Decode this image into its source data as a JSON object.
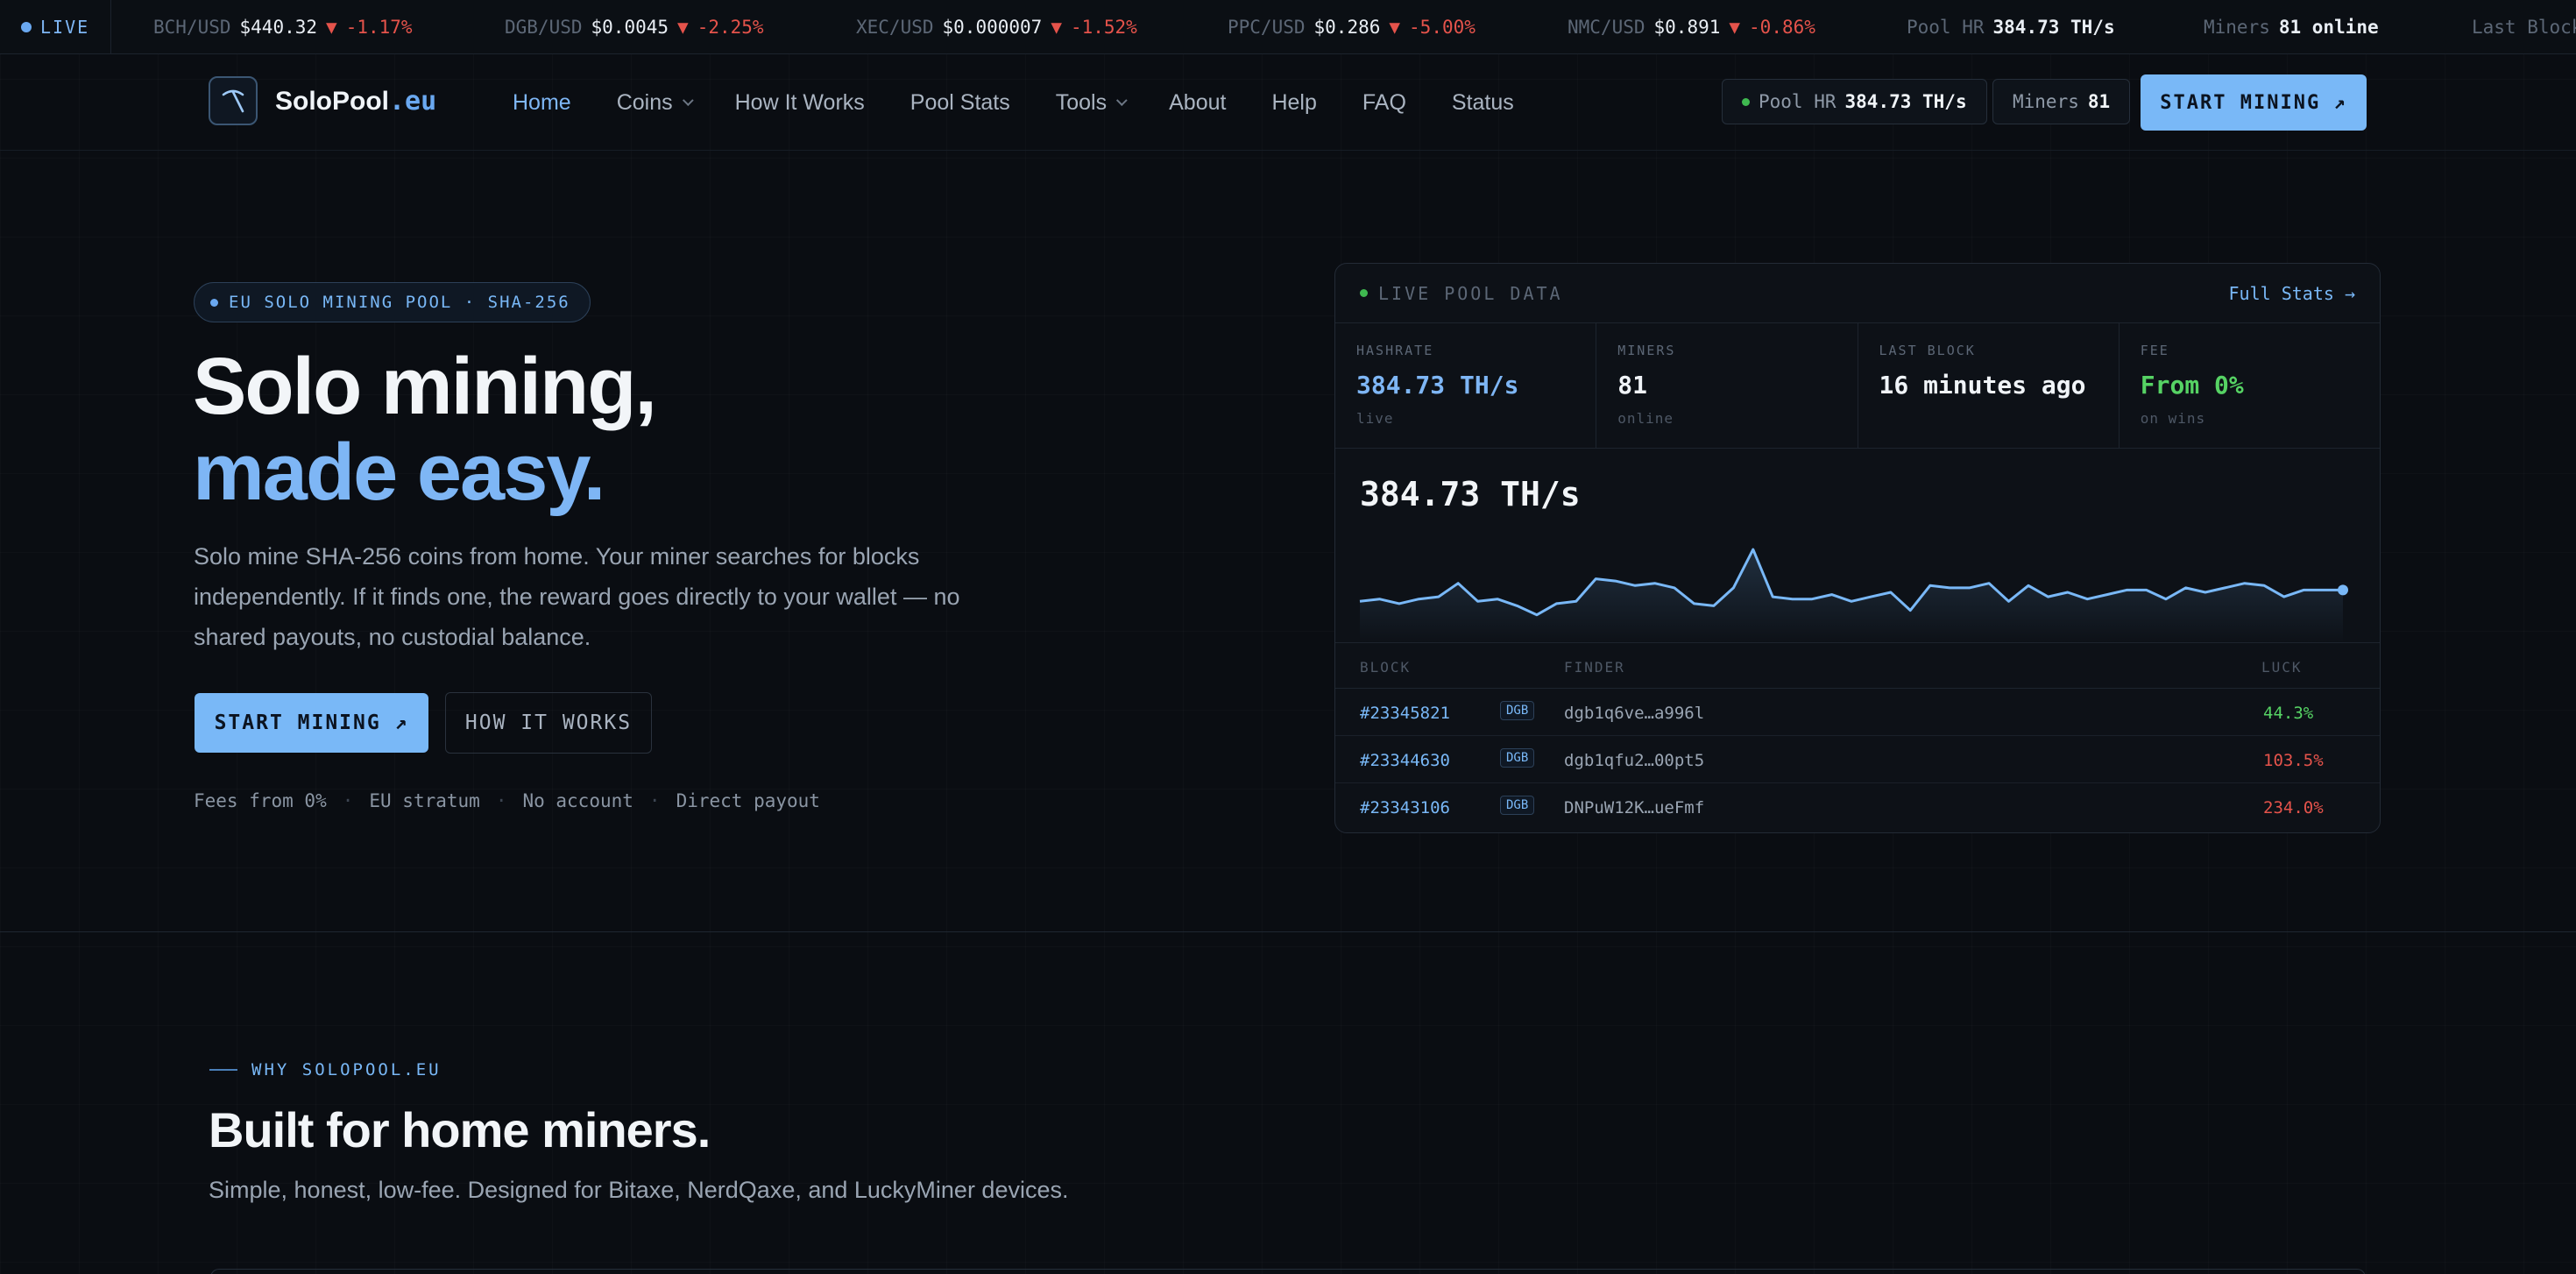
{
  "ticker": {
    "live_label": "LIVE",
    "items": [
      {
        "pair": "BCH/USD",
        "price": "$440.32",
        "change": "-1.17%"
      },
      {
        "pair": "DGB/USD",
        "price": "$0.0045",
        "change": "-2.25%"
      },
      {
        "pair": "XEC/USD",
        "price": "$0.000007",
        "change": "-1.52%"
      },
      {
        "pair": "PPC/USD",
        "price": "$0.286",
        "change": "-5.00%"
      },
      {
        "pair": "NMC/USD",
        "price": "$0.891",
        "change": "-0.86%"
      }
    ],
    "down_arrow": "▼",
    "pool_hr_label": "Pool HR",
    "pool_hr_value": "384.73 TH/s",
    "miners_label": "Miners",
    "miners_value": "81 online",
    "last_block_label": "Last Block"
  },
  "nav": {
    "logo_name": "SoloPool",
    "logo_tld": ".eu",
    "links": [
      {
        "label": "Home",
        "active": true
      },
      {
        "label": "Coins",
        "dropdown": true
      },
      {
        "label": "How It Works"
      },
      {
        "label": "Pool Stats"
      },
      {
        "label": "Tools",
        "dropdown": true
      },
      {
        "label": "About"
      },
      {
        "label": "Help"
      },
      {
        "label": "FAQ"
      },
      {
        "label": "Status"
      }
    ],
    "pool_hr_label": "Pool HR",
    "pool_hr_value": "384.73 TH/s",
    "miners_label": "Miners",
    "miners_value": "81",
    "cta_label": "START MINING ↗"
  },
  "hero": {
    "badge": "EU SOLO MINING POOL · SHA-256",
    "title_line1": "Solo mining,",
    "title_line2": "made easy.",
    "description": "Solo mine SHA-256 coins from home. Your miner searches for blocks independently. If it finds one, the reward goes directly to your wallet — no shared payouts, no custodial balance.",
    "primary_cta": "START MINING ↗",
    "secondary_cta": "HOW IT WORKS",
    "meta": [
      "Fees from 0%",
      "EU stratum",
      "No account",
      "Direct payout"
    ],
    "meta_separator": "·"
  },
  "panel": {
    "title": "LIVE POOL DATA",
    "link": "Full Stats →",
    "stats": [
      {
        "label": "HASHRATE",
        "value": "384.73 TH/s",
        "sub": "live",
        "style": "blue"
      },
      {
        "label": "MINERS",
        "value": "81",
        "sub": "online",
        "style": "white"
      },
      {
        "label": "LAST BLOCK",
        "value": "16 minutes ago",
        "sub": "",
        "style": "white"
      },
      {
        "label": "FEE",
        "value": "From 0%",
        "sub": "on wins",
        "style": "green"
      }
    ],
    "chart_value": "384.73 TH/s",
    "blocks_headers": {
      "block": "BLOCK",
      "finder": "FINDER",
      "luck": "LUCK"
    },
    "blocks": [
      {
        "number": "#23345821",
        "coin": "DGB",
        "finder": "dgb1q6ve…a996l",
        "luck": "44.3%",
        "luck_good": true
      },
      {
        "number": "#23344630",
        "coin": "DGB",
        "finder": "dgb1qfu2…00pt5",
        "luck": "103.5%",
        "luck_good": false
      },
      {
        "number": "#23343106",
        "coin": "DGB",
        "finder": "DNPuW12K…ueFmf",
        "luck": "234.0%",
        "luck_good": false
      }
    ]
  },
  "chart_data": {
    "type": "line",
    "title": "",
    "series": [
      {
        "values": [
          380,
          381,
          379,
          381,
          382,
          388,
          380,
          381,
          378,
          374,
          379,
          380,
          390,
          389,
          387,
          388,
          386,
          379,
          378,
          386,
          403,
          382,
          381,
          381,
          383,
          380,
          382,
          384,
          376,
          387,
          386,
          386,
          388,
          380,
          387,
          382,
          384,
          381,
          383,
          385,
          385,
          381,
          386,
          384,
          386,
          388,
          387,
          382,
          385,
          385,
          385
        ]
      }
    ]
  },
  "why": {
    "eyebrow": "WHY SOLOPOOL.EU",
    "title": "Built for home miners.",
    "description": "Simple, honest, low-fee. Designed for Bitaxe, NerdQaxe, and LuckyMiner devices."
  },
  "colors": {
    "accent": "#79b8f7",
    "down": "#e5534b",
    "up": "#56d364",
    "background": "#0a0d12"
  }
}
